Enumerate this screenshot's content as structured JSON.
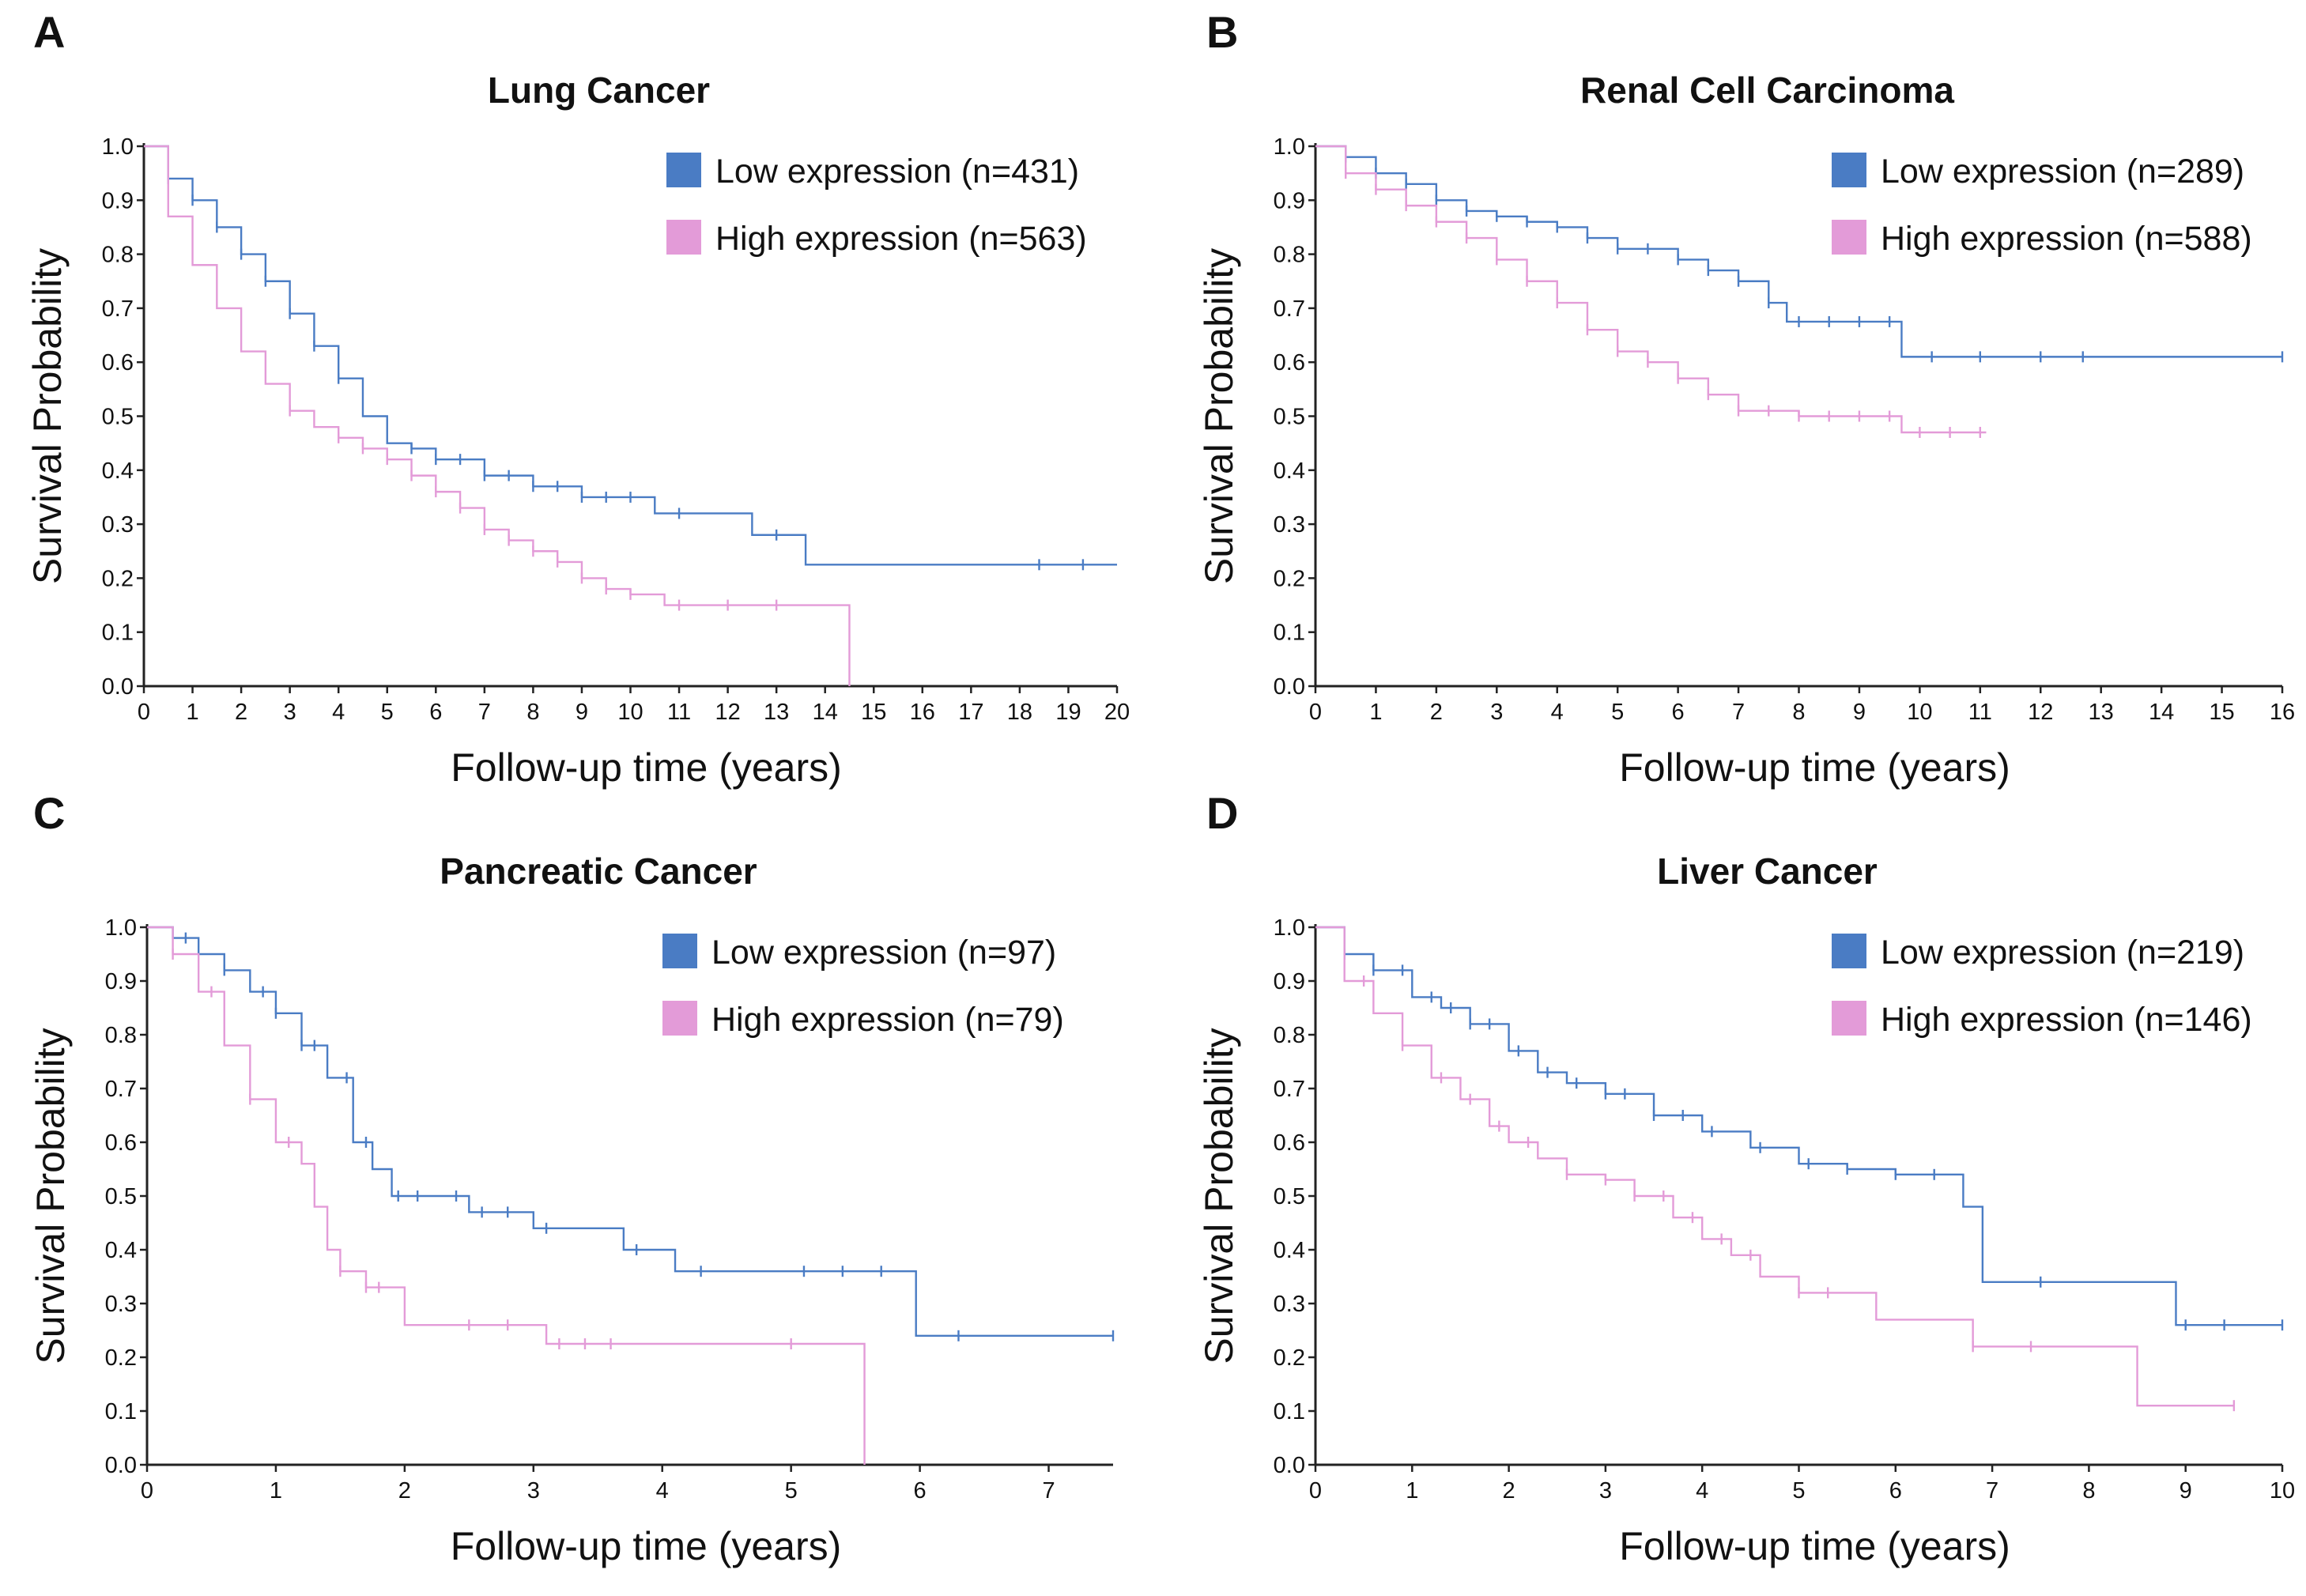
{
  "chart_data": [
    {
      "type": "line",
      "subtype": "kaplan-meier",
      "panel_letter": "A",
      "title": "Lung Cancer",
      "xlabel": "Follow-up time (years)",
      "ylabel": "Survival Probability",
      "xlim": [
        0,
        20
      ],
      "ylim": [
        0,
        1
      ],
      "xticks": [
        0,
        1,
        2,
        3,
        4,
        5,
        6,
        7,
        8,
        9,
        10,
        11,
        12,
        13,
        14,
        15,
        16,
        17,
        18,
        19,
        20
      ],
      "yticks": [
        0.0,
        0.1,
        0.2,
        0.3,
        0.4,
        0.5,
        0.6,
        0.7,
        0.8,
        0.9,
        1.0
      ],
      "ytick_labels": [
        "0.0",
        "0.1",
        "0.2",
        "0.3",
        "0.4",
        "0.5",
        "0.6",
        "0.7",
        "0.8",
        "0.9",
        "1.0"
      ],
      "legend_position": "top-right",
      "series": [
        {
          "name": "Low expression (n=431)",
          "color": "#4a7cc4",
          "x": [
            0,
            0.5,
            1,
            1.5,
            2,
            2.5,
            3,
            3.5,
            4,
            4.5,
            5,
            5.5,
            6,
            7,
            8,
            9,
            10.5,
            12.5,
            13.6,
            20
          ],
          "y": [
            1.0,
            0.94,
            0.9,
            0.85,
            0.8,
            0.75,
            0.69,
            0.63,
            0.57,
            0.5,
            0.45,
            0.44,
            0.42,
            0.39,
            0.37,
            0.35,
            0.32,
            0.28,
            0.225,
            0.225
          ],
          "censor_x": [
            0.5,
            1,
            1.5,
            2,
            2.5,
            3,
            3.5,
            4,
            5.5,
            6,
            6.5,
            7,
            7.5,
            8,
            8.5,
            9,
            9.5,
            10,
            11,
            13,
            18.4,
            19.3
          ]
        },
        {
          "name": "High expression (n=563)",
          "color": "#e39bd8",
          "x": [
            0,
            0.5,
            1,
            1.5,
            2,
            2.5,
            3,
            3.5,
            4,
            4.5,
            5,
            5.5,
            6,
            6.5,
            7,
            7.5,
            8,
            8.5,
            9,
            9.5,
            10,
            10.7,
            14.5,
            14.5
          ],
          "y": [
            1.0,
            0.87,
            0.78,
            0.7,
            0.62,
            0.56,
            0.51,
            0.48,
            0.46,
            0.44,
            0.42,
            0.39,
            0.36,
            0.33,
            0.29,
            0.27,
            0.25,
            0.23,
            0.2,
            0.18,
            0.17,
            0.15,
            0.15,
            0.0
          ],
          "censor_x": [
            3,
            4,
            4.5,
            5,
            5.5,
            6,
            6.5,
            7,
            7.5,
            8,
            8.5,
            9,
            9.5,
            10,
            11,
            12,
            13
          ]
        }
      ]
    },
    {
      "type": "line",
      "subtype": "kaplan-meier",
      "panel_letter": "B",
      "title": "Renal Cell Carcinoma",
      "xlabel": "Follow-up time (years)",
      "ylabel": "Survival Probability",
      "xlim": [
        0,
        16
      ],
      "ylim": [
        0,
        1
      ],
      "xticks": [
        0,
        1,
        2,
        3,
        4,
        5,
        6,
        7,
        8,
        9,
        10,
        11,
        12,
        13,
        14,
        15,
        16
      ],
      "yticks": [
        0.0,
        0.1,
        0.2,
        0.3,
        0.4,
        0.5,
        0.6,
        0.7,
        0.8,
        0.9,
        1.0
      ],
      "ytick_labels": [
        "0.0",
        "0.1",
        "0.2",
        "0.3",
        "0.4",
        "0.5",
        "0.6",
        "0.7",
        "0.8",
        "0.9",
        "1.0"
      ],
      "legend_position": "top-right",
      "series": [
        {
          "name": "Low expression (n=289)",
          "color": "#4a7cc4",
          "x": [
            0,
            0.5,
            1,
            1.5,
            2,
            2.5,
            3,
            3.5,
            4,
            4.5,
            5,
            6,
            6.5,
            7,
            7.5,
            7.8,
            9.7,
            16
          ],
          "y": [
            1.0,
            0.98,
            0.95,
            0.93,
            0.9,
            0.88,
            0.87,
            0.86,
            0.85,
            0.83,
            0.81,
            0.79,
            0.77,
            0.75,
            0.71,
            0.675,
            0.61,
            0.61
          ],
          "censor_x": [
            0.5,
            1,
            1.5,
            2,
            2.5,
            3,
            3.5,
            4,
            4.5,
            5,
            5.5,
            6,
            6.5,
            7,
            7.5,
            8,
            8.5,
            9,
            9.5,
            10.2,
            11,
            12,
            12.7,
            16
          ]
        },
        {
          "name": "High expression (n=588)",
          "color": "#e39bd8",
          "x": [
            0,
            0.5,
            1,
            1.5,
            2,
            2.5,
            3,
            3.5,
            4,
            4.5,
            5,
            5.5,
            6,
            6.5,
            7,
            7.5,
            8,
            9.7,
            11.1
          ],
          "y": [
            1.0,
            0.95,
            0.92,
            0.89,
            0.86,
            0.83,
            0.79,
            0.75,
            0.71,
            0.66,
            0.62,
            0.6,
            0.57,
            0.54,
            0.51,
            0.51,
            0.5,
            0.47,
            0.47
          ],
          "censor_x": [
            0.5,
            1,
            1.5,
            2,
            2.5,
            3,
            3.5,
            4,
            4.5,
            5,
            5.5,
            6,
            6.5,
            7,
            7.5,
            8,
            8.5,
            9,
            9.5,
            10,
            10.5,
            11
          ]
        }
      ]
    },
    {
      "type": "line",
      "subtype": "kaplan-meier",
      "panel_letter": "C",
      "title": "Pancreatic Cancer",
      "xlabel": "Follow-up time (years)",
      "ylabel": "Survival Probability",
      "xlim": [
        0,
        7.5
      ],
      "ylim": [
        0,
        1
      ],
      "xticks": [
        0,
        1,
        2,
        3,
        4,
        5,
        6,
        7
      ],
      "yticks": [
        0.0,
        0.1,
        0.2,
        0.3,
        0.4,
        0.5,
        0.6,
        0.7,
        0.8,
        0.9,
        1.0
      ],
      "ytick_labels": [
        "0.0",
        "0.1",
        "0.2",
        "0.3",
        "0.4",
        "0.5",
        "0.6",
        "0.7",
        "0.8",
        "0.9",
        "1.0"
      ],
      "legend_position": "top-right",
      "series": [
        {
          "name": "Low expression (n=97)",
          "color": "#4a7cc4",
          "x": [
            0,
            0.2,
            0.4,
            0.6,
            0.8,
            1,
            1.2,
            1.4,
            1.6,
            1.75,
            1.9,
            2.5,
            3,
            3.7,
            4.1,
            5,
            5.97,
            7.5
          ],
          "y": [
            1.0,
            0.98,
            0.95,
            0.92,
            0.88,
            0.84,
            0.78,
            0.72,
            0.6,
            0.55,
            0.5,
            0.47,
            0.44,
            0.4,
            0.36,
            0.36,
            0.24,
            0.24
          ],
          "censor_x": [
            0.3,
            0.6,
            0.9,
            1,
            1.2,
            1.3,
            1.55,
            1.7,
            1.95,
            2.1,
            2.4,
            2.6,
            2.8,
            3.1,
            3.8,
            4.3,
            5.1,
            5.4,
            5.7,
            6.3,
            7.5
          ]
        },
        {
          "name": "High expression (n=79)",
          "color": "#e39bd8",
          "x": [
            0,
            0.2,
            0.4,
            0.6,
            0.8,
            1,
            1.2,
            1.3,
            1.4,
            1.5,
            1.7,
            2,
            3.1,
            5.57,
            5.57
          ],
          "y": [
            1.0,
            0.95,
            0.88,
            0.78,
            0.68,
            0.6,
            0.56,
            0.48,
            0.4,
            0.36,
            0.33,
            0.26,
            0.225,
            0.225,
            0.0
          ],
          "censor_x": [
            0.2,
            0.5,
            0.8,
            1.1,
            1.5,
            1.7,
            1.8,
            2.5,
            2.8,
            3.2,
            3.4,
            3.6,
            5.0
          ]
        }
      ]
    },
    {
      "type": "line",
      "subtype": "kaplan-meier",
      "panel_letter": "D",
      "title": "Liver Cancer",
      "xlabel": "Follow-up time (years)",
      "ylabel": "Survival Probability",
      "xlim": [
        0,
        10
      ],
      "ylim": [
        0,
        1
      ],
      "xticks": [
        0,
        1,
        2,
        3,
        4,
        5,
        6,
        7,
        8,
        9,
        10
      ],
      "yticks": [
        0.0,
        0.1,
        0.2,
        0.3,
        0.4,
        0.5,
        0.6,
        0.7,
        0.8,
        0.9,
        1.0
      ],
      "ytick_labels": [
        "0.0",
        "0.1",
        "0.2",
        "0.3",
        "0.4",
        "0.5",
        "0.6",
        "0.7",
        "0.8",
        "0.9",
        "1.0"
      ],
      "legend_position": "top-right",
      "series": [
        {
          "name": "Low expression (n=219)",
          "color": "#4a7cc4",
          "x": [
            0,
            0.3,
            0.6,
            1,
            1.3,
            1.6,
            2,
            2.3,
            2.6,
            3,
            3.5,
            4,
            4.5,
            5,
            5.5,
            6,
            6.7,
            6.9,
            8.9,
            10
          ],
          "y": [
            1.0,
            0.95,
            0.92,
            0.87,
            0.85,
            0.82,
            0.77,
            0.73,
            0.71,
            0.69,
            0.65,
            0.62,
            0.59,
            0.56,
            0.55,
            0.54,
            0.48,
            0.34,
            0.26,
            0.26
          ],
          "censor_x": [
            0.3,
            0.6,
            0.9,
            1.2,
            1.4,
            1.6,
            1.8,
            2.1,
            2.4,
            2.7,
            3,
            3.2,
            3.5,
            3.8,
            4.1,
            4.6,
            5.1,
            5.5,
            6,
            6.4,
            7.5,
            9,
            9.4,
            10
          ]
        },
        {
          "name": "High expression (n=146)",
          "color": "#e39bd8",
          "x": [
            0,
            0.3,
            0.6,
            0.9,
            1.2,
            1.5,
            1.8,
            2,
            2.3,
            2.6,
            3,
            3.3,
            3.7,
            4,
            4.3,
            4.6,
            5,
            5.8,
            6.8,
            8.5,
            9.5
          ],
          "y": [
            1.0,
            0.9,
            0.84,
            0.78,
            0.72,
            0.68,
            0.63,
            0.6,
            0.57,
            0.54,
            0.53,
            0.5,
            0.46,
            0.42,
            0.39,
            0.35,
            0.32,
            0.27,
            0.22,
            0.11,
            0.11
          ],
          "censor_x": [
            0.5,
            0.9,
            1.3,
            1.6,
            1.9,
            2.2,
            2.6,
            3,
            3.3,
            3.6,
            3.9,
            4.2,
            4.5,
            5,
            5.3,
            6.8,
            7.4,
            9.5
          ]
        }
      ]
    }
  ]
}
